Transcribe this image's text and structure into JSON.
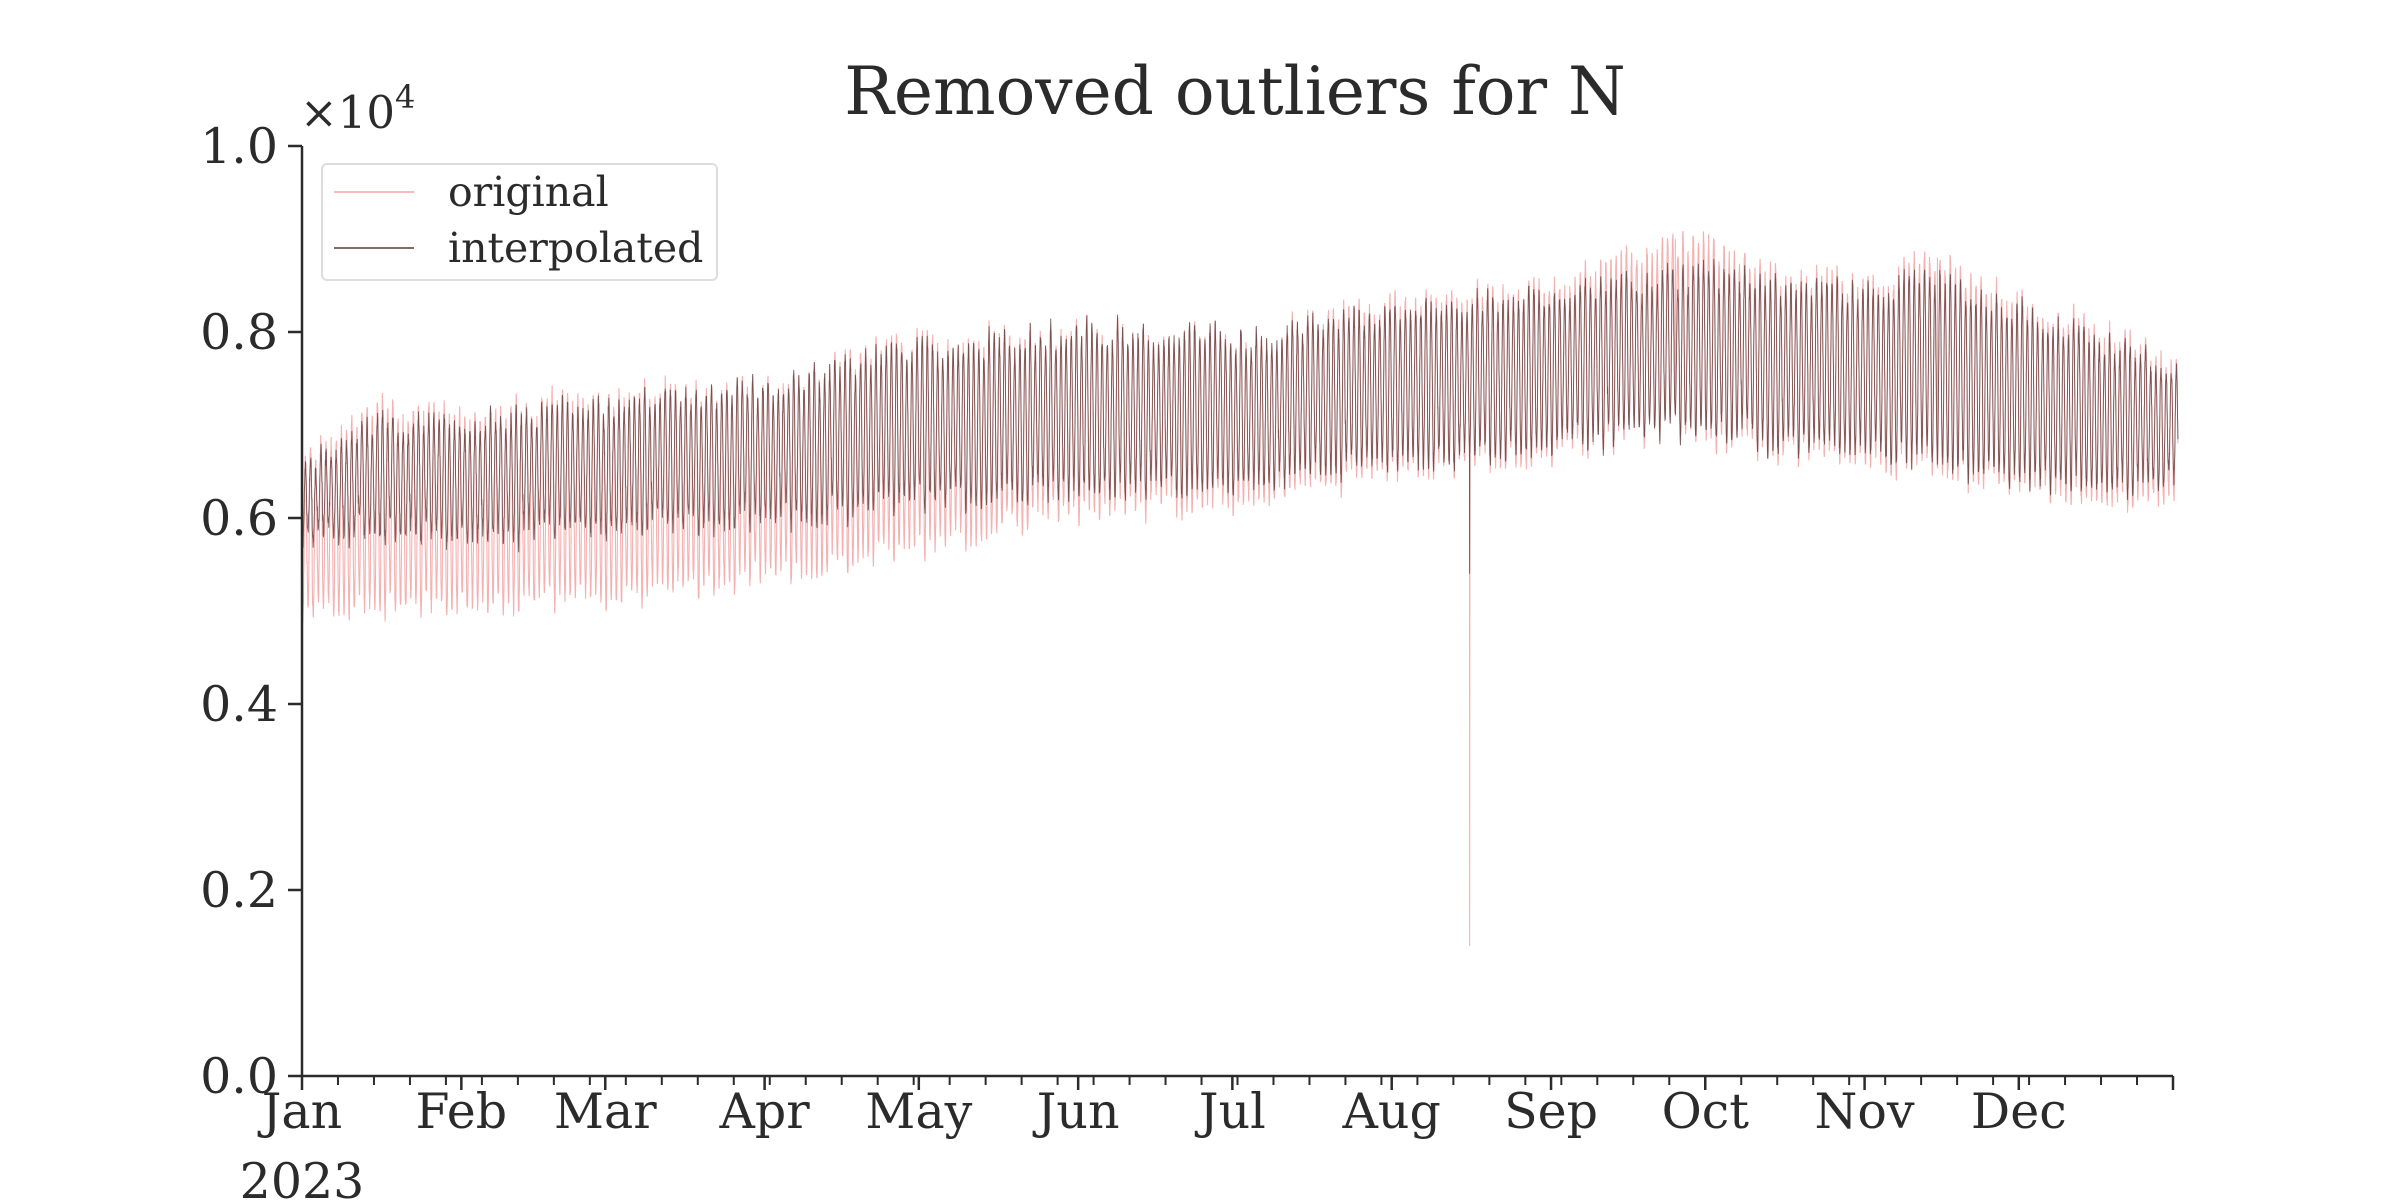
{
  "chart_data": {
    "type": "line",
    "title": "Removed outliers for N",
    "xlabel": "",
    "ylabel": "",
    "y_scale_label": "×10",
    "y_scale_exponent": "4",
    "x_range": [
      "2023-01-01",
      "2023-12-31"
    ],
    "ylim": [
      0,
      10000
    ],
    "y_ticks": [
      0,
      2000,
      4000,
      6000,
      8000,
      10000
    ],
    "y_tick_labels": [
      "0.0",
      "0.2",
      "0.4",
      "0.6",
      "0.8",
      "1.0"
    ],
    "x_ticks": [
      "2023-01-01",
      "2023-02-01",
      "2023-03-01",
      "2023-04-01",
      "2023-05-01",
      "2023-06-01",
      "2023-07-01",
      "2023-08-01",
      "2023-09-01",
      "2023-10-01",
      "2023-11-01",
      "2023-12-01"
    ],
    "x_tick_labels": [
      "Jan",
      "Feb",
      "Mar",
      "Apr",
      "May",
      "Jun",
      "Jul",
      "Aug",
      "Sep",
      "Oct",
      "Nov",
      "Dec"
    ],
    "x_year_label": "2023",
    "frequency": "hourly",
    "daily_min_hour": 4,
    "daily_max_hour": 16,
    "grid": false,
    "legend_position": "top-left",
    "series": [
      {
        "name": "original",
        "color": "#f2a3a3",
        "daily_envelope": [
          {
            "date": "2023-01-01",
            "min": 5000,
            "max": 6600
          },
          {
            "date": "2023-01-15",
            "min": 5100,
            "max": 7200
          },
          {
            "date": "2023-02-01",
            "min": 5050,
            "max": 7100
          },
          {
            "date": "2023-03-01",
            "min": 5150,
            "max": 7300
          },
          {
            "date": "2023-04-01",
            "min": 5400,
            "max": 7400
          },
          {
            "date": "2023-05-01",
            "min": 5700,
            "max": 7900
          },
          {
            "date": "2023-06-01",
            "min": 6100,
            "max": 8000
          },
          {
            "date": "2023-07-01",
            "min": 6200,
            "max": 7900
          },
          {
            "date": "2023-08-01",
            "min": 6500,
            "max": 8300
          },
          {
            "date": "2023-09-01",
            "min": 6700,
            "max": 8500
          },
          {
            "date": "2023-09-25",
            "min": 7000,
            "max": 9000
          },
          {
            "date": "2023-10-01",
            "min": 6900,
            "max": 8900
          },
          {
            "date": "2023-10-15",
            "min": 6700,
            "max": 8600
          },
          {
            "date": "2023-11-01",
            "min": 6600,
            "max": 8500
          },
          {
            "date": "2023-11-15",
            "min": 6600,
            "max": 8800
          },
          {
            "date": "2023-12-01",
            "min": 6300,
            "max": 8300
          },
          {
            "date": "2023-12-31",
            "min": 6200,
            "max": 7700
          }
        ],
        "outliers": [
          {
            "date": "2023-08-16",
            "value": 1400
          },
          {
            "date": "2023-09-25",
            "value": 9000
          },
          {
            "date": "2023-11-15",
            "value": 8800
          }
        ]
      },
      {
        "name": "interpolated",
        "color": "#5a3838",
        "daily_envelope": [
          {
            "date": "2023-01-01",
            "min": 5800,
            "max": 6500
          },
          {
            "date": "2023-01-15",
            "min": 5900,
            "max": 7000
          },
          {
            "date": "2023-02-01",
            "min": 5800,
            "max": 7000
          },
          {
            "date": "2023-03-01",
            "min": 5900,
            "max": 7200
          },
          {
            "date": "2023-04-01",
            "min": 6000,
            "max": 7400
          },
          {
            "date": "2023-05-01",
            "min": 6200,
            "max": 7800
          },
          {
            "date": "2023-06-01",
            "min": 6300,
            "max": 8000
          },
          {
            "date": "2023-07-01",
            "min": 6400,
            "max": 7900
          },
          {
            "date": "2023-08-01",
            "min": 6600,
            "max": 8200
          },
          {
            "date": "2023-09-01",
            "min": 6800,
            "max": 8400
          },
          {
            "date": "2023-09-25",
            "min": 7000,
            "max": 8600
          },
          {
            "date": "2023-10-01",
            "min": 7000,
            "max": 8600
          },
          {
            "date": "2023-10-15",
            "min": 6800,
            "max": 8500
          },
          {
            "date": "2023-11-01",
            "min": 6700,
            "max": 8400
          },
          {
            "date": "2023-11-15",
            "min": 6700,
            "max": 8600
          },
          {
            "date": "2023-12-01",
            "min": 6400,
            "max": 8200
          },
          {
            "date": "2023-12-31",
            "min": 6400,
            "max": 7600
          }
        ],
        "outliers": [
          {
            "date": "2023-08-16",
            "value": 5400
          }
        ]
      }
    ]
  }
}
